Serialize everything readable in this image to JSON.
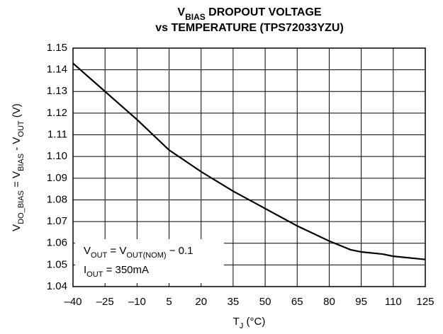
{
  "chart_data": {
    "type": "line",
    "title": [
      [
        {
          "text": "V"
        },
        {
          "sub": "BIAS"
        },
        {
          "text": " DROPOUT VOLTAGE"
        }
      ],
      [
        {
          "text": "vs TEMPERATURE (TPS72033YZU)"
        }
      ]
    ],
    "x_label": [
      {
        "text": "T"
      },
      {
        "sub": "J"
      },
      {
        "text": " (°C)"
      }
    ],
    "y_label": [
      {
        "text": "V"
      },
      {
        "sub": "DO_BIAS"
      },
      {
        "text": " = V"
      },
      {
        "sub": "BIAS"
      },
      {
        "text": " - V"
      },
      {
        "sub": "OUT"
      },
      {
        "text": " (V)"
      }
    ],
    "annotations": [
      [
        {
          "text": "V"
        },
        {
          "sub": "OUT"
        },
        {
          "text": " = V"
        },
        {
          "sub": "OUT(NOM)"
        },
        {
          "text": " − 0.1"
        }
      ],
      [
        {
          "text": "I"
        },
        {
          "sub": "OUT"
        },
        {
          "text": " = 350mA"
        }
      ]
    ],
    "x": [
      -40,
      -25,
      -10,
      5,
      20,
      35,
      50,
      65,
      80,
      90,
      95,
      105,
      110,
      125
    ],
    "series": [
      {
        "color": "#000000",
        "values": [
          1.143,
          1.13,
          1.117,
          1.103,
          1.093,
          1.084,
          1.076,
          1.068,
          1.061,
          1.057,
          1.056,
          1.055,
          1.054,
          1.0525
        ]
      }
    ],
    "xlim": [
      -40,
      125
    ],
    "xticks": [
      {
        "value": -40,
        "label": "–40"
      },
      {
        "value": -25,
        "label": "–25"
      },
      {
        "value": -10,
        "label": "–10"
      },
      5,
      20,
      35,
      50,
      65,
      80,
      95,
      110,
      125
    ],
    "ylim": [
      1.04,
      1.15
    ],
    "yticks": [
      1.04,
      1.05,
      1.06,
      1.07,
      1.08,
      1.09,
      {
        "value": 1.1,
        "label": "1.10"
      },
      1.11,
      1.12,
      1.13,
      1.14,
      {
        "value": 1.15,
        "label": "1.15"
      }
    ],
    "grid": true
  }
}
